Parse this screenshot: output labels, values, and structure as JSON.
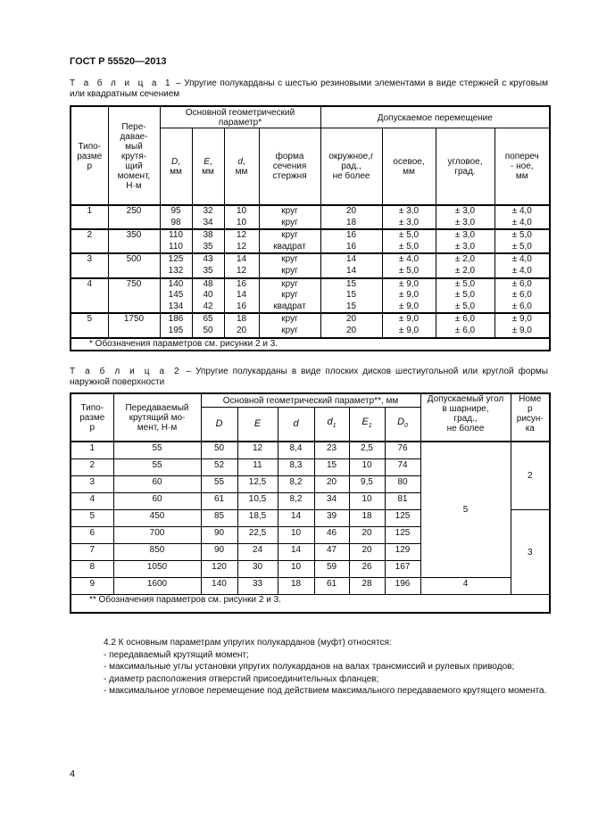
{
  "header": "ГОСТ Р 55520—2013",
  "table1": {
    "caption_label": "Т а б л и ц а  1",
    "caption_text": " – Упругие полукарданы с шестью резиновыми элементами в виде стержней с круговым или квадратным сечением",
    "headers": {
      "size": "Типо-\nразме\nр",
      "torque": "Пере-\nдавае-\nмый\nкрутя-\nщий\nмомент,\nН·м",
      "geom": "Основной геометрический\nпараметр*",
      "disp": "Допускаемое перемещение",
      "D": "D",
      "E": "E",
      "d": "d",
      "unit": "мм",
      "shape": "форма\nсечения\nстержня",
      "circ": "окружное,г\nрад.,\nне более",
      "axial": "осевое,\nмм",
      "angular": "угловое,\nград.",
      "transverse": "попереч\n- ное,\nмм"
    },
    "rows": [
      {
        "size": "1",
        "torque": "250",
        "D": [
          "95",
          "98"
        ],
        "E": [
          "32",
          "34"
        ],
        "d": [
          "10",
          "10"
        ],
        "shape": [
          "круг",
          "круг"
        ],
        "circ": [
          "20",
          "18"
        ],
        "axial": [
          "± 3,0",
          "± 3,0"
        ],
        "angular": [
          "± 3,0",
          "± 3,0"
        ],
        "transverse": [
          "± 4,0",
          "± 4,0"
        ]
      },
      {
        "size": "2",
        "torque": "350",
        "D": [
          "110",
          "110"
        ],
        "E": [
          "38",
          "35"
        ],
        "d": [
          "12",
          "12"
        ],
        "shape": [
          "круг",
          "квадрат"
        ],
        "circ": [
          "16",
          "16"
        ],
        "axial": [
          "± 5,0",
          "± 5,0"
        ],
        "angular": [
          "± 3,0",
          "± 3,0"
        ],
        "transverse": [
          "± 5,0",
          "± 5,0"
        ]
      },
      {
        "size": "3",
        "torque": "500",
        "D": [
          "125",
          "132"
        ],
        "E": [
          "43",
          "35"
        ],
        "d": [
          "14",
          "12"
        ],
        "shape": [
          "круг",
          "круг"
        ],
        "circ": [
          "14",
          "14"
        ],
        "axial": [
          "± 4,0",
          "± 5,0"
        ],
        "angular": [
          "± 2,0",
          "± 2,0"
        ],
        "transverse": [
          "± 4,0",
          "± 4,0"
        ]
      },
      {
        "size": "4",
        "torque": "750",
        "D": [
          "140",
          "145",
          "134"
        ],
        "E": [
          "48",
          "40",
          "42"
        ],
        "d": [
          "16",
          "14",
          "16"
        ],
        "shape": [
          "круг",
          "круг",
          "квадрат"
        ],
        "circ": [
          "15",
          "15",
          "15"
        ],
        "axial": [
          "± 9,0",
          "± 9,0",
          "± 9,0"
        ],
        "angular": [
          "± 5,0",
          "± 5,0",
          "± 5,0"
        ],
        "transverse": [
          "± 6,0",
          "± 6,0",
          "± 6,0"
        ]
      },
      {
        "size": "5",
        "torque": "1750",
        "D": [
          "186",
          "195"
        ],
        "E": [
          "65",
          "50"
        ],
        "d": [
          "18",
          "20"
        ],
        "shape": [
          "круг",
          "круг"
        ],
        "circ": [
          "20",
          "20"
        ],
        "axial": [
          "± 9,0",
          "± 9,0"
        ],
        "angular": [
          "± 6,0",
          "± 6,0"
        ],
        "transverse": [
          "± 9,0",
          "± 9,0"
        ]
      }
    ],
    "footnote": "* Обозначения параметров см. рисунки 2 и 3."
  },
  "table2": {
    "caption_label": "Т а б л и ц а  2",
    "caption_text": " – Упругие полукарданы в виде плоских дисков шестиугольной или круглой формы наружной поверхности",
    "headers": {
      "size": "Типо-\nразме\nр",
      "torque": "Передаваемый\nкрутящий мо-\nмент, Н·м",
      "geom": "Основной геометрический параметр**, мм",
      "D": "D",
      "E": "E",
      "d": "d",
      "d1": "d",
      "d1_sub": "1",
      "E1": "E",
      "E1_sub": "1",
      "D0": "D",
      "D0_sub": "0",
      "angle": "Допускаемый угол\nв шарнире,\nград.,\nне более",
      "figure": "Номе\nр\nрисун-\nка"
    },
    "rows": [
      [
        "1",
        "55",
        "50",
        "12",
        "8,4",
        "23",
        "2,5",
        "76"
      ],
      [
        "2",
        "55",
        "52",
        "11",
        "8,3",
        "15",
        "10",
        "74"
      ],
      [
        "3",
        "60",
        "55",
        "12,5",
        "8,2",
        "20",
        "9,5",
        "80"
      ],
      [
        "4",
        "60",
        "61",
        "10,5",
        "8,2",
        "34",
        "10",
        "81"
      ],
      [
        "5",
        "450",
        "85",
        "18,5",
        "14",
        "39",
        "18",
        "125"
      ],
      [
        "6",
        "700",
        "90",
        "22,5",
        "10",
        "46",
        "20",
        "125"
      ],
      [
        "7",
        "850",
        "90",
        "24",
        "14",
        "47",
        "20",
        "129"
      ],
      [
        "8",
        "1050",
        "120",
        "30",
        "10",
        "59",
        "26",
        "167"
      ],
      [
        "9",
        "1600",
        "140",
        "33",
        "18",
        "61",
        "28",
        "196"
      ]
    ],
    "angle_groups": [
      {
        "value": "5",
        "rows": 8
      },
      {
        "value": "4",
        "rows": 1
      }
    ],
    "figure_groups": [
      {
        "value": "2",
        "rows": 4
      },
      {
        "value": "3",
        "rows": 5
      }
    ],
    "footnote": "** Обозначения параметров см. рисунки 2 и 3."
  },
  "paragraph": {
    "intro": "4.2  К основным параметрам упругих полукарданов (муфт) относятся:",
    "items": [
      "-   передаваемый крутящий момент;",
      "- максимальные углы установки упругих полукарданов на валах трансмиссий и рулевых приводов;",
      "-  диаметр расположения отверстий присоединительных фланцев;",
      "- максимальное угловое перемещение под действием максимального передаваемого крутящего момента."
    ]
  },
  "page_number": "4"
}
